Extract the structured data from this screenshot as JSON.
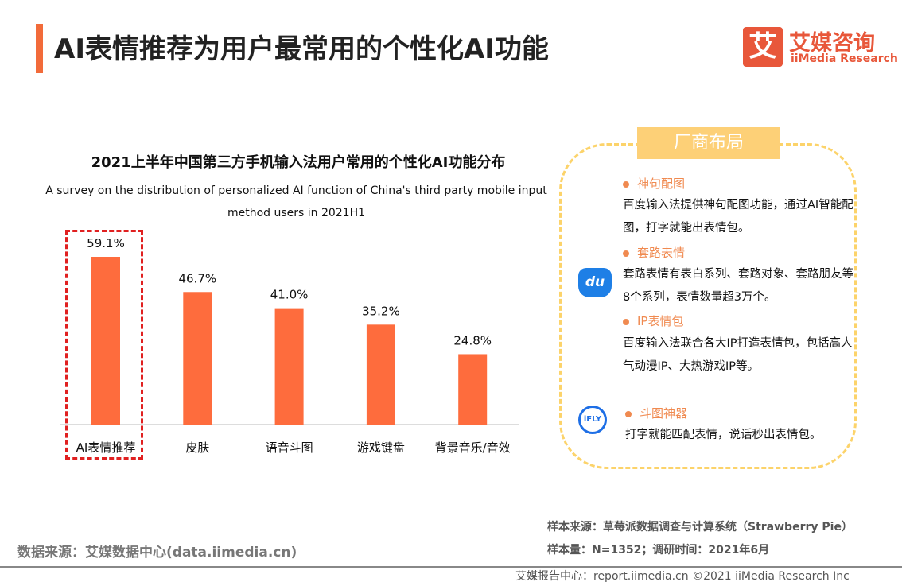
{
  "header": {
    "title": "AI表情推荐为用户最常用的个性化AI功能",
    "logo_mark": "艾",
    "logo_cn": "艾媒咨询",
    "logo_en": "iiMedia Research"
  },
  "chart_data": {
    "type": "bar",
    "title": "2021上半年中国第三方手机输入法用户常用的个性化AI功能分布",
    "subtitle": "A survey on the distribution of personalized AI function of China's third party mobile input method users  in 2021H1",
    "categories": [
      "AI表情推荐",
      "皮肤",
      "语音斗图",
      "游戏键盘",
      "背景音乐/音效"
    ],
    "values": [
      59.1,
      46.7,
      41.0,
      35.2,
      24.8
    ],
    "labels": [
      "59.1%",
      "46.7%",
      "41.0%",
      "35.2%",
      "24.8%"
    ],
    "unit": "%",
    "ylim": [
      0,
      60
    ],
    "grid": false,
    "bar_color": "#fe6c3d",
    "highlight": "AI表情推荐",
    "highlight_color": "#e02020"
  },
  "panel": {
    "title": "厂商布局",
    "items": [
      {
        "heading": "神句配图",
        "text": "百度输入法提供神句配图功能，通过AI智能配图，打字就能出表情包。"
      },
      {
        "heading": "套路表情",
        "text": "套路表情有表白系列、套路对象、套路朋友等8个系列，表情数量超3万个。"
      },
      {
        "heading": "IP表情包",
        "text": "百度输入法联合各大IP打造表情包，包括高人气动漫IP、大热游戏IP等。"
      },
      {
        "heading": "斗图神器",
        "text": "打字就能匹配表情，说话秒出表情包。"
      }
    ],
    "logo_du": "du",
    "logo_ifly": "iFLY"
  },
  "footer": {
    "source": "数据来源：艾媒数据中心(data.iimedia.cn)",
    "sample_source": "样本来源：草莓派数据调查与计算系统（Strawberry Pie）",
    "sample_size": "样本量：N=1352；调研时间：2021年6月",
    "copyright": "艾媒报告中心：report.iimedia.cn   ©2021  iiMedia Research  Inc"
  }
}
